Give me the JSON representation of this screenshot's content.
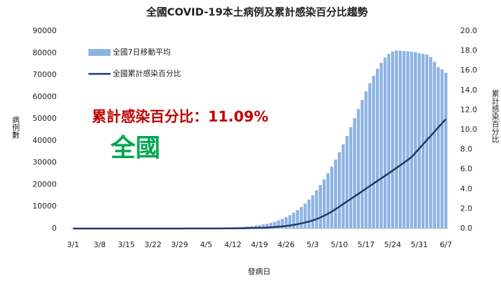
{
  "chart_data": {
    "type": "bar",
    "title": "全國COVID-19本土病例及累計感染百分比趨勢",
    "x_label": "發病日",
    "y_label": "病例數",
    "y2_label": "累計感染百分比",
    "annotations": [
      "累計感染百分比：11.09%",
      "全國"
    ],
    "categories": [
      "3/1",
      null,
      null,
      null,
      null,
      null,
      null,
      "3/8",
      null,
      null,
      null,
      null,
      null,
      null,
      "3/15",
      null,
      null,
      null,
      null,
      null,
      null,
      "3/22",
      null,
      null,
      null,
      null,
      null,
      null,
      "3/29",
      null,
      null,
      null,
      null,
      null,
      null,
      "4/5",
      null,
      null,
      null,
      null,
      null,
      null,
      "4/12",
      null,
      null,
      null,
      null,
      null,
      null,
      "4/19",
      null,
      null,
      null,
      null,
      null,
      null,
      "4/26",
      null,
      null,
      null,
      null,
      null,
      null,
      "5/3",
      null,
      null,
      null,
      null,
      null,
      null,
      "5/10",
      null,
      null,
      null,
      null,
      null,
      null,
      "5/17",
      null,
      null,
      null,
      null,
      null,
      null,
      "5/24",
      null,
      null,
      null,
      null,
      null,
      null,
      "5/31",
      null,
      null,
      null,
      null,
      null,
      null,
      "6/7"
    ],
    "series": [
      {
        "name": "全國7日移動平均",
        "type": "bar",
        "color": "#8db3e2",
        "values": [
          10,
          10,
          12,
          12,
          14,
          15,
          15,
          16,
          18,
          20,
          20,
          22,
          25,
          25,
          28,
          30,
          32,
          35,
          38,
          40,
          42,
          45,
          50,
          55,
          60,
          65,
          70,
          78,
          85,
          95,
          105,
          120,
          135,
          150,
          170,
          190,
          215,
          245,
          280,
          320,
          370,
          430,
          500,
          580,
          680,
          800,
          950,
          1120,
          1320,
          1560,
          1850,
          2200,
          2600,
          3100,
          3700,
          4400,
          5200,
          6100,
          7200,
          8400,
          9800,
          11400,
          13200,
          15200,
          17400,
          19800,
          22400,
          25200,
          28200,
          31400,
          34800,
          38400,
          42200,
          46200,
          50300,
          54500,
          58600,
          62500,
          66200,
          69600,
          72800,
          75600,
          77900,
          79600,
          80700,
          81200,
          81100,
          80900,
          80800,
          80600,
          80400,
          79900,
          79600,
          79300,
          78200,
          76000,
          73500,
          72500,
          71000
        ]
      },
      {
        "name": "全國累計感染百分比",
        "type": "line",
        "axis": "y2",
        "color": "#1f3864",
        "values": [
          0,
          0,
          0,
          0,
          0,
          0,
          0,
          0,
          0,
          0,
          0,
          0,
          0,
          0,
          0,
          0,
          0,
          0,
          0,
          0,
          0,
          0,
          0,
          0,
          0,
          0,
          0,
          0,
          0,
          0,
          0.01,
          0.01,
          0.01,
          0.01,
          0.01,
          0.01,
          0.01,
          0.01,
          0.01,
          0.01,
          0.02,
          0.02,
          0.02,
          0.03,
          0.03,
          0.03,
          0.04,
          0.05,
          0.06,
          0.07,
          0.08,
          0.1,
          0.12,
          0.15,
          0.18,
          0.22,
          0.26,
          0.31,
          0.37,
          0.44,
          0.52,
          0.61,
          0.71,
          0.82,
          0.96,
          1.12,
          1.3,
          1.5,
          1.72,
          1.96,
          2.22,
          2.48,
          2.74,
          3.0,
          3.26,
          3.52,
          3.78,
          4.04,
          4.3,
          4.56,
          4.82,
          5.08,
          5.34,
          5.6,
          5.87,
          6.14,
          6.41,
          6.68,
          6.96,
          7.24,
          7.67,
          8.1,
          8.53,
          8.96,
          9.38,
          9.81,
          10.24,
          10.66,
          11.09
        ]
      }
    ],
    "ylim": [
      0,
      90000
    ],
    "yticks": [
      0,
      10000,
      20000,
      30000,
      40000,
      50000,
      60000,
      70000,
      80000,
      90000
    ],
    "y2lim": [
      0,
      20
    ],
    "y2ticks": [
      {
        "value": 0,
        "label": "0.0"
      },
      {
        "value": 2,
        "label": "2.0"
      },
      {
        "value": 4,
        "label": "4.0"
      },
      {
        "value": 6,
        "label": "6.0"
      },
      {
        "value": 8,
        "label": "8.0"
      },
      {
        "value": 10,
        "label": "10.0"
      },
      {
        "value": 12,
        "label": "12.0"
      },
      {
        "value": 14,
        "label": "14.0"
      },
      {
        "value": 16,
        "label": "16.0"
      },
      {
        "value": 18,
        "label": "18.0"
      },
      {
        "value": 20,
        "label": "20.0"
      }
    ],
    "grid": false,
    "legend": "upper left"
  }
}
